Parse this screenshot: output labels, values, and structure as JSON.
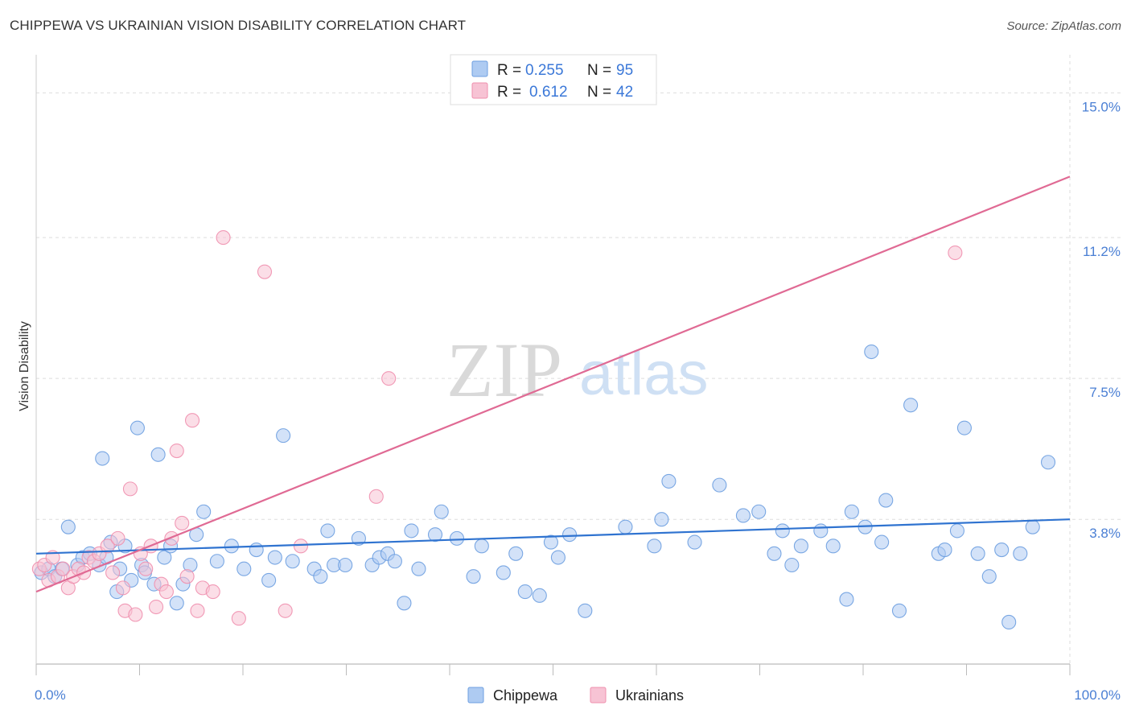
{
  "header": {
    "title": "CHIPPEWA VS UKRAINIAN VISION DISABILITY CORRELATION CHART",
    "source": "Source: ZipAtlas.com"
  },
  "colors": {
    "chippewa": "#6d9fe0",
    "chippewa_fill": "#aecbf2",
    "ukrainians": "#ef8fae",
    "ukrainians_fill": "#f7c3d4",
    "chippewa_line": "#2f73d0",
    "ukrainians_line": "#e06a94",
    "axis_text": "#4a7fd4"
  },
  "legend": {
    "rows": [
      {
        "r_label": "R =",
        "r_value": "0.255",
        "n_label": "N =",
        "n_value": "95"
      },
      {
        "r_label": "R =",
        "r_value": "0.612",
        "n_label": "N =",
        "n_value": "42"
      }
    ]
  },
  "bottom_legend": [
    "Chippewa",
    "Ukrainians"
  ],
  "watermark": {
    "zip": "ZIP",
    "atlas": "atlas"
  },
  "chart_data": {
    "type": "scatter",
    "title": "CHIPPEWA VS UKRAINIAN VISION DISABILITY CORRELATION CHART",
    "xlabel": "",
    "ylabel": "Vision Disability",
    "xlim": [
      0,
      100
    ],
    "ylim": [
      0,
      16.0
    ],
    "x_tick_labels": [
      "0.0%",
      "100.0%"
    ],
    "y_ticks": [
      3.8,
      7.5,
      11.2,
      15.0
    ],
    "y_tick_labels": [
      "3.8%",
      "7.5%",
      "11.2%",
      "15.0%"
    ],
    "grid": true,
    "series": [
      {
        "name": "Chippewa",
        "r": 0.255,
        "n": 95,
        "trend": [
          [
            0,
            2.9
          ],
          [
            100,
            3.8
          ]
        ],
        "points": [
          [
            0.5,
            2.4
          ],
          [
            1.2,
            2.5
          ],
          [
            1.8,
            2.3
          ],
          [
            2.5,
            2.5
          ],
          [
            3.1,
            3.6
          ],
          [
            4.0,
            2.6
          ],
          [
            4.5,
            2.8
          ],
          [
            5.2,
            2.9
          ],
          [
            6.1,
            2.6
          ],
          [
            6.4,
            5.4
          ],
          [
            6.8,
            2.8
          ],
          [
            7.2,
            3.2
          ],
          [
            7.8,
            1.9
          ],
          [
            8.1,
            2.5
          ],
          [
            8.6,
            3.1
          ],
          [
            9.2,
            2.2
          ],
          [
            9.8,
            6.2
          ],
          [
            10.2,
            2.6
          ],
          [
            10.5,
            2.4
          ],
          [
            11.4,
            2.1
          ],
          [
            11.8,
            5.5
          ],
          [
            12.4,
            2.8
          ],
          [
            13.0,
            3.1
          ],
          [
            13.6,
            1.6
          ],
          [
            14.2,
            2.1
          ],
          [
            14.9,
            2.6
          ],
          [
            15.5,
            3.4
          ],
          [
            16.2,
            4.0
          ],
          [
            17.5,
            2.7
          ],
          [
            18.9,
            3.1
          ],
          [
            20.1,
            2.5
          ],
          [
            21.3,
            3.0
          ],
          [
            22.5,
            2.2
          ],
          [
            23.1,
            2.8
          ],
          [
            23.9,
            6.0
          ],
          [
            24.8,
            2.7
          ],
          [
            26.9,
            2.5
          ],
          [
            27.5,
            2.3
          ],
          [
            28.2,
            3.5
          ],
          [
            28.8,
            2.6
          ],
          [
            29.9,
            2.6
          ],
          [
            31.2,
            3.3
          ],
          [
            32.5,
            2.6
          ],
          [
            33.2,
            2.8
          ],
          [
            34.0,
            2.9
          ],
          [
            34.7,
            2.7
          ],
          [
            35.6,
            1.6
          ],
          [
            36.3,
            3.5
          ],
          [
            37.0,
            2.5
          ],
          [
            38.6,
            3.4
          ],
          [
            39.2,
            4.0
          ],
          [
            40.7,
            3.3
          ],
          [
            42.3,
            2.3
          ],
          [
            43.1,
            3.1
          ],
          [
            45.2,
            2.4
          ],
          [
            46.4,
            2.9
          ],
          [
            47.3,
            1.9
          ],
          [
            48.7,
            1.8
          ],
          [
            49.8,
            3.2
          ],
          [
            50.5,
            2.8
          ],
          [
            51.6,
            3.4
          ],
          [
            53.1,
            1.4
          ],
          [
            57.0,
            3.6
          ],
          [
            59.8,
            3.1
          ],
          [
            60.5,
            3.8
          ],
          [
            61.2,
            4.8
          ],
          [
            63.7,
            3.2
          ],
          [
            66.1,
            4.7
          ],
          [
            68.4,
            3.9
          ],
          [
            69.9,
            4.0
          ],
          [
            71.4,
            2.9
          ],
          [
            72.2,
            3.5
          ],
          [
            73.1,
            2.6
          ],
          [
            74.0,
            3.1
          ],
          [
            75.9,
            3.5
          ],
          [
            77.1,
            3.1
          ],
          [
            78.4,
            1.7
          ],
          [
            78.9,
            4.0
          ],
          [
            80.2,
            3.6
          ],
          [
            80.8,
            8.2
          ],
          [
            81.8,
            3.2
          ],
          [
            82.2,
            4.3
          ],
          [
            83.5,
            1.4
          ],
          [
            84.6,
            6.8
          ],
          [
            87.3,
            2.9
          ],
          [
            87.9,
            3.0
          ],
          [
            89.1,
            3.5
          ],
          [
            89.8,
            6.2
          ],
          [
            91.1,
            2.9
          ],
          [
            92.2,
            2.3
          ],
          [
            93.4,
            3.0
          ],
          [
            94.1,
            1.1
          ],
          [
            95.2,
            2.9
          ],
          [
            96.4,
            3.6
          ],
          [
            97.9,
            5.3
          ]
        ]
      },
      {
        "name": "Ukrainians",
        "r": 0.612,
        "n": 42,
        "trend": [
          [
            0,
            1.9
          ],
          [
            100,
            12.8
          ]
        ],
        "points": [
          [
            0.3,
            2.5
          ],
          [
            0.8,
            2.6
          ],
          [
            1.2,
            2.2
          ],
          [
            1.6,
            2.8
          ],
          [
            2.1,
            2.3
          ],
          [
            2.6,
            2.5
          ],
          [
            3.1,
            2.0
          ],
          [
            3.6,
            2.3
          ],
          [
            4.1,
            2.5
          ],
          [
            4.6,
            2.4
          ],
          [
            5.1,
            2.8
          ],
          [
            5.6,
            2.7
          ],
          [
            6.1,
            2.9
          ],
          [
            6.9,
            3.1
          ],
          [
            7.4,
            2.4
          ],
          [
            7.9,
            3.3
          ],
          [
            8.4,
            2.0
          ],
          [
            8.6,
            1.4
          ],
          [
            9.1,
            4.6
          ],
          [
            9.6,
            1.3
          ],
          [
            10.1,
            2.9
          ],
          [
            10.6,
            2.5
          ],
          [
            11.1,
            3.1
          ],
          [
            11.6,
            1.5
          ],
          [
            12.1,
            2.1
          ],
          [
            12.6,
            1.9
          ],
          [
            13.1,
            3.3
          ],
          [
            13.6,
            5.6
          ],
          [
            14.1,
            3.7
          ],
          [
            14.6,
            2.3
          ],
          [
            15.1,
            6.4
          ],
          [
            15.6,
            1.4
          ],
          [
            16.1,
            2.0
          ],
          [
            17.1,
            1.9
          ],
          [
            18.1,
            11.2
          ],
          [
            19.6,
            1.2
          ],
          [
            22.1,
            10.3
          ],
          [
            24.1,
            1.4
          ],
          [
            25.6,
            3.1
          ],
          [
            32.9,
            4.4
          ],
          [
            34.1,
            7.5
          ],
          [
            88.9,
            10.8
          ]
        ]
      }
    ]
  }
}
